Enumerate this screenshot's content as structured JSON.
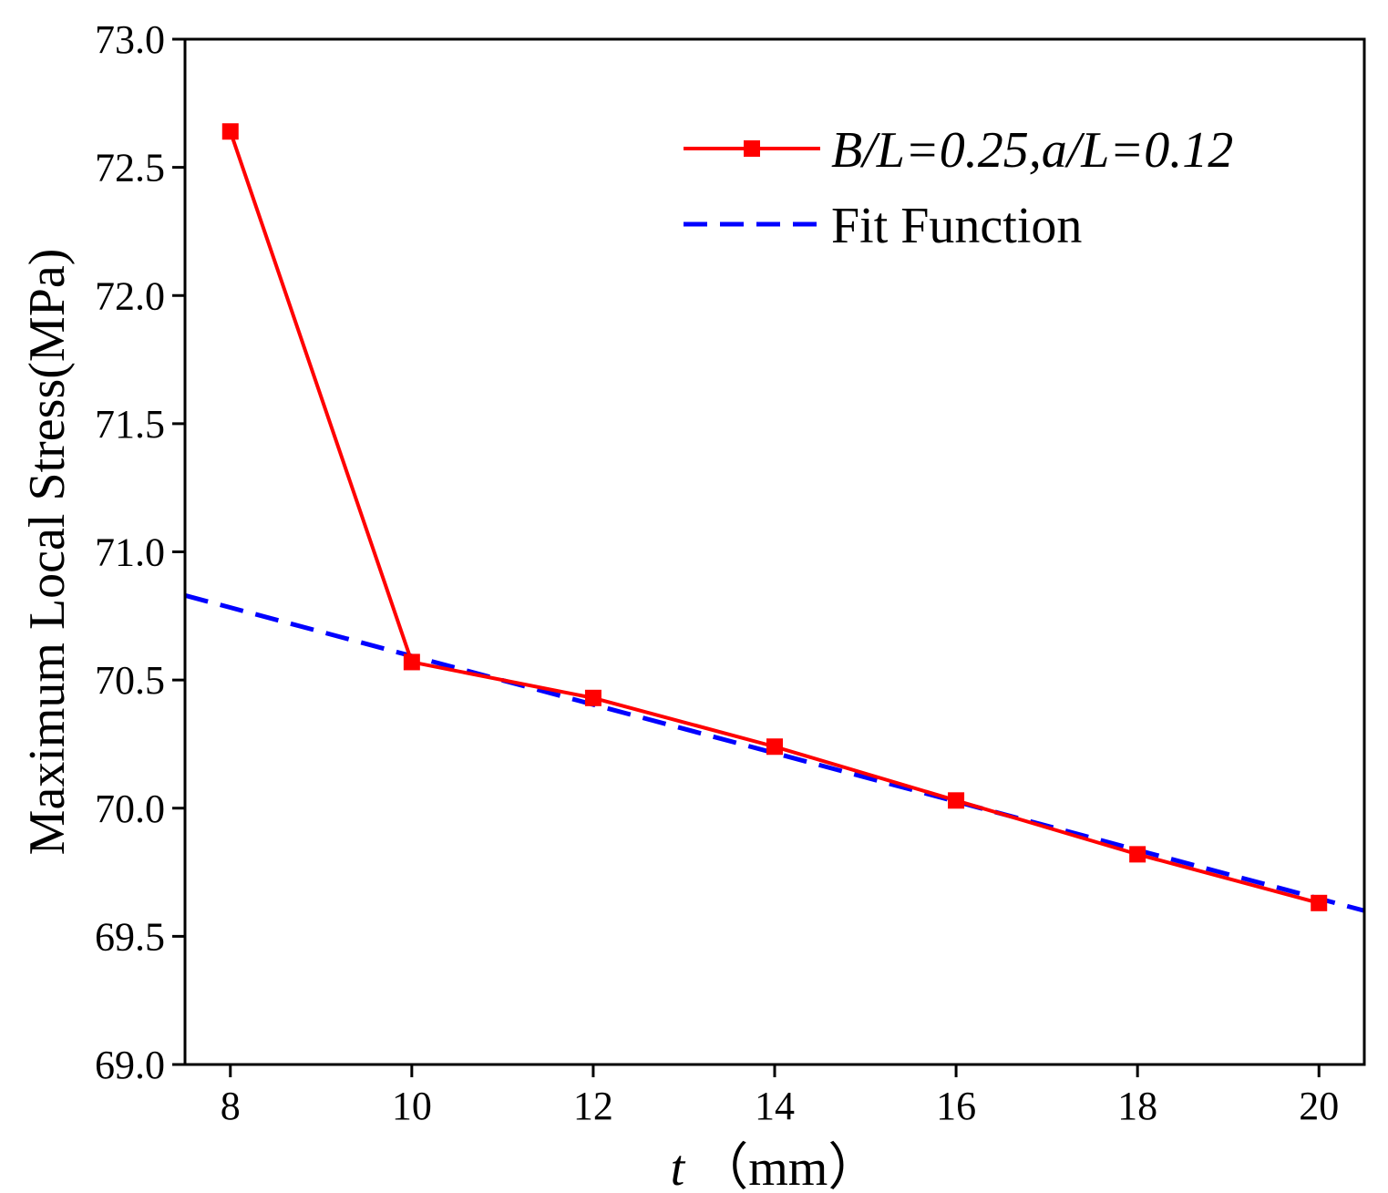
{
  "chart_data": {
    "type": "line",
    "xlabel_var": "t",
    "xlabel_unit": "（mm）",
    "ylabel": "Maximum Local Stress(MPa)",
    "xlim": [
      7.5,
      20.5
    ],
    "ylim": [
      69.0,
      73.0
    ],
    "x_ticks": [
      8,
      10,
      12,
      14,
      16,
      18,
      20
    ],
    "y_ticks": [
      "69.0",
      "69.5",
      "70.0",
      "70.5",
      "71.0",
      "71.5",
      "72.0",
      "72.5",
      "73.0"
    ],
    "series": [
      {
        "name": "B/L=0.25,a/L=0.12",
        "color": "#ff0000",
        "style": "solid-with-square-markers",
        "x": [
          8,
          10,
          12,
          14,
          16,
          18,
          20
        ],
        "y": [
          72.64,
          70.57,
          70.43,
          70.24,
          70.03,
          69.82,
          69.63
        ]
      },
      {
        "name": "Fit Function",
        "color": "#0000ff",
        "style": "dashed",
        "x": [
          7.5,
          20.5
        ],
        "y": [
          70.83,
          69.6
        ]
      }
    ],
    "legend_position": "top-right"
  }
}
